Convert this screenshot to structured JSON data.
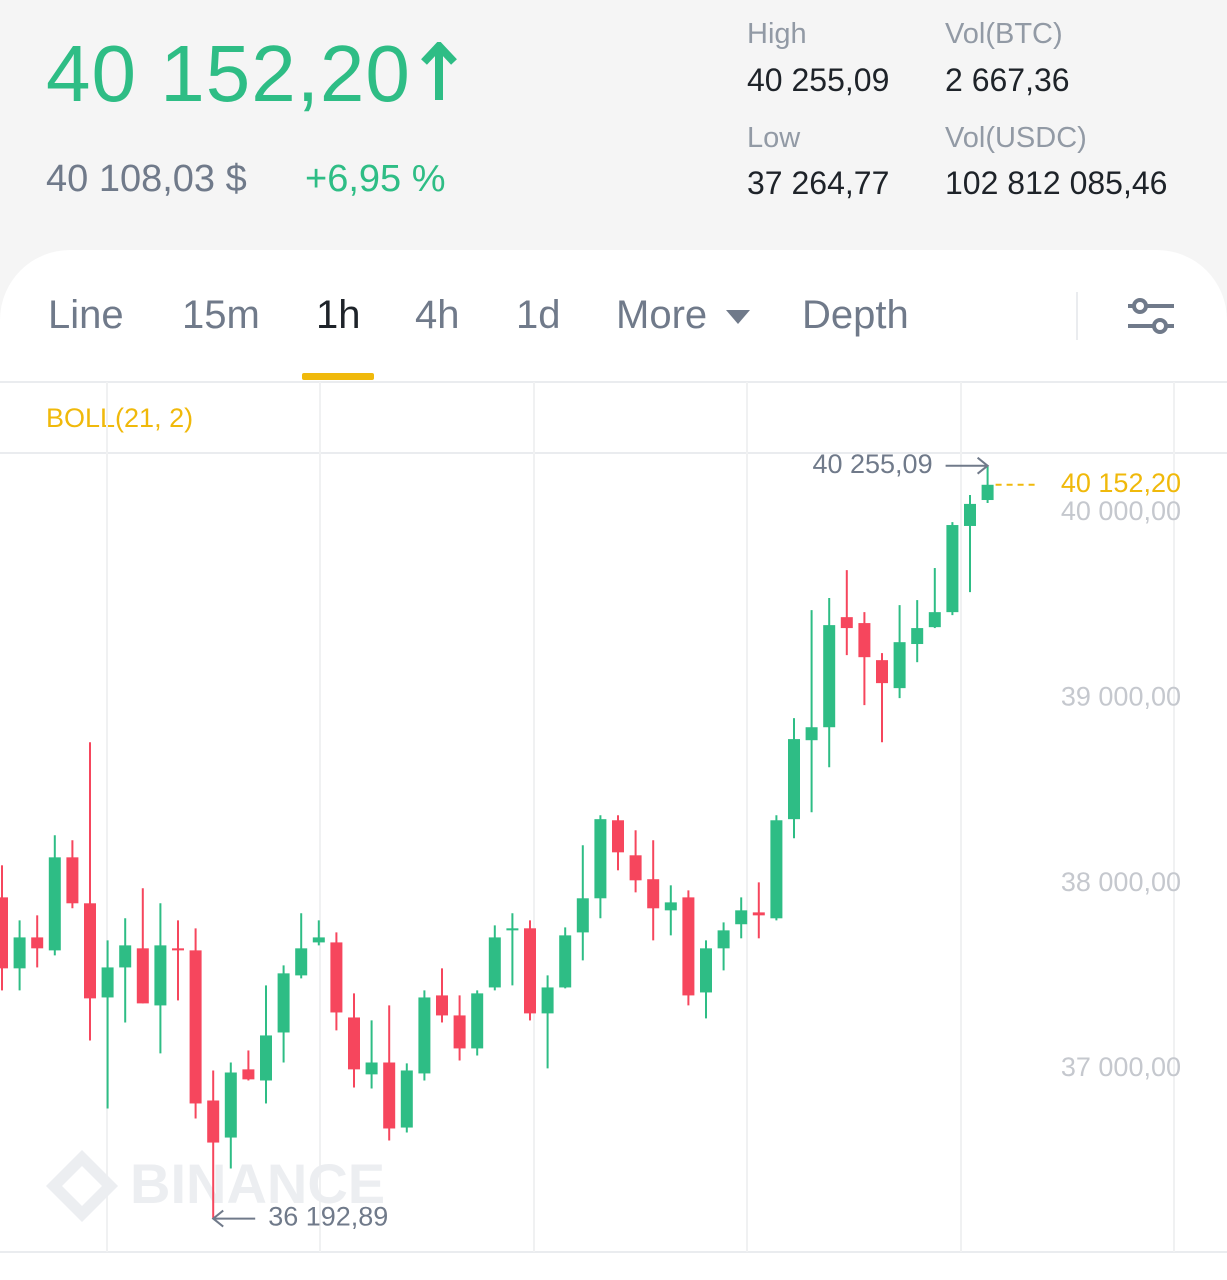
{
  "header": {
    "price": "40 152,20",
    "fiat": "40 108,03 $",
    "change": "+6,95 %",
    "stats": [
      {
        "label": "High",
        "value": "40 255,09"
      },
      {
        "label": "Vol(BTC)",
        "value": "2 667,36"
      },
      {
        "label": "Low",
        "value": "37 264,77"
      },
      {
        "label": "Vol(USDC)",
        "value": "102 812 085,46"
      }
    ]
  },
  "tabs": {
    "items": [
      "Line",
      "15m",
      "1h",
      "4h",
      "1d",
      "More",
      "Depth"
    ],
    "active": 2
  },
  "chart_data": {
    "type": "candlestick",
    "indicator": "BOLL(21, 2)",
    "watermark": "BINANCE",
    "up_color": "#2ebd85",
    "down_color": "#f6465d",
    "ylim": [
      36012.5,
      40323.7
    ],
    "yticks": [
      {
        "value": 37000,
        "label": "37 000,00"
      },
      {
        "value": 38000,
        "label": "38 000,00"
      },
      {
        "value": 39000,
        "label": "39 000,00"
      },
      {
        "value": 40000,
        "label": "40 000,00"
      }
    ],
    "open": [
      37926,
      37543,
      37710,
      37640,
      38142,
      37894,
      37386,
      37548,
      37651,
      37343,
      37651,
      37640,
      36830,
      36630,
      36998,
      36938,
      37197,
      37505,
      37683,
      37683,
      37278,
      36971,
      37035,
      36684,
      36976,
      37397,
      37289,
      37111,
      37440,
      37748,
      37759,
      37300,
      37440,
      37737,
      37921,
      38342,
      38153,
      38024,
      37856,
      37926,
      37413,
      37651,
      37781,
      37845,
      37813,
      38348,
      38774,
      38844,
      39438,
      39406,
      39206,
      39055,
      39293,
      39384,
      39465,
      39930,
      40070
    ],
    "high": [
      38099,
      37802,
      37829,
      38261,
      38234,
      38763,
      37694,
      37813,
      37975,
      37894,
      37802,
      37759,
      36992,
      37035,
      37100,
      37451,
      37559,
      37840,
      37802,
      37737,
      37408,
      37262,
      37343,
      37030,
      37424,
      37543,
      37397,
      37424,
      37775,
      37840,
      37802,
      37505,
      37764,
      38207,
      38369,
      38369,
      38288,
      38234,
      37991,
      37964,
      37694,
      37791,
      37926,
      38007,
      38369,
      38893,
      39476,
      39541,
      39692,
      39465,
      39244,
      39503,
      39530,
      39703,
      39951,
      40097,
      40255.09
    ],
    "low": [
      37424,
      37424,
      37548,
      37613,
      37867,
      37154,
      36787,
      37251,
      37354,
      37084,
      37370,
      36733,
      36192.89,
      36463,
      36938,
      36814,
      37035,
      37489,
      37667,
      37208,
      36900,
      36895,
      36614,
      36657,
      36938,
      37251,
      37046,
      37073,
      37424,
      37451,
      37262,
      37003,
      37435,
      37586,
      37813,
      38072,
      37953,
      37694,
      37721,
      37343,
      37273,
      37532,
      37705,
      37705,
      37802,
      38245,
      38385,
      38628,
      39233,
      38963,
      38763,
      39001,
      39195,
      39379,
      39449,
      39573,
      40054
    ],
    "close": [
      37543,
      37710,
      37651,
      38142,
      37894,
      37381,
      37548,
      37667,
      37354,
      37667,
      37640,
      36814,
      36603,
      36981,
      36944,
      37181,
      37516,
      37651,
      37710,
      37305,
      36998,
      37035,
      36679,
      36992,
      37386,
      37289,
      37111,
      37408,
      37710,
      37759,
      37300,
      37440,
      37721,
      37921,
      38348,
      38169,
      38018,
      37867,
      37899,
      37397,
      37651,
      37748,
      37856,
      37829,
      38342,
      38780,
      38844,
      39395,
      39379,
      39222,
      39082,
      39303,
      39379,
      39465,
      39935,
      40049,
      40152.2
    ],
    "max_marker": {
      "value": 40255.09,
      "label": "40 255,09"
    },
    "min_marker": {
      "value": 36192.89,
      "label": "36 192,89"
    },
    "last_price": {
      "value": 40152.2,
      "label": "40 152,20"
    }
  }
}
